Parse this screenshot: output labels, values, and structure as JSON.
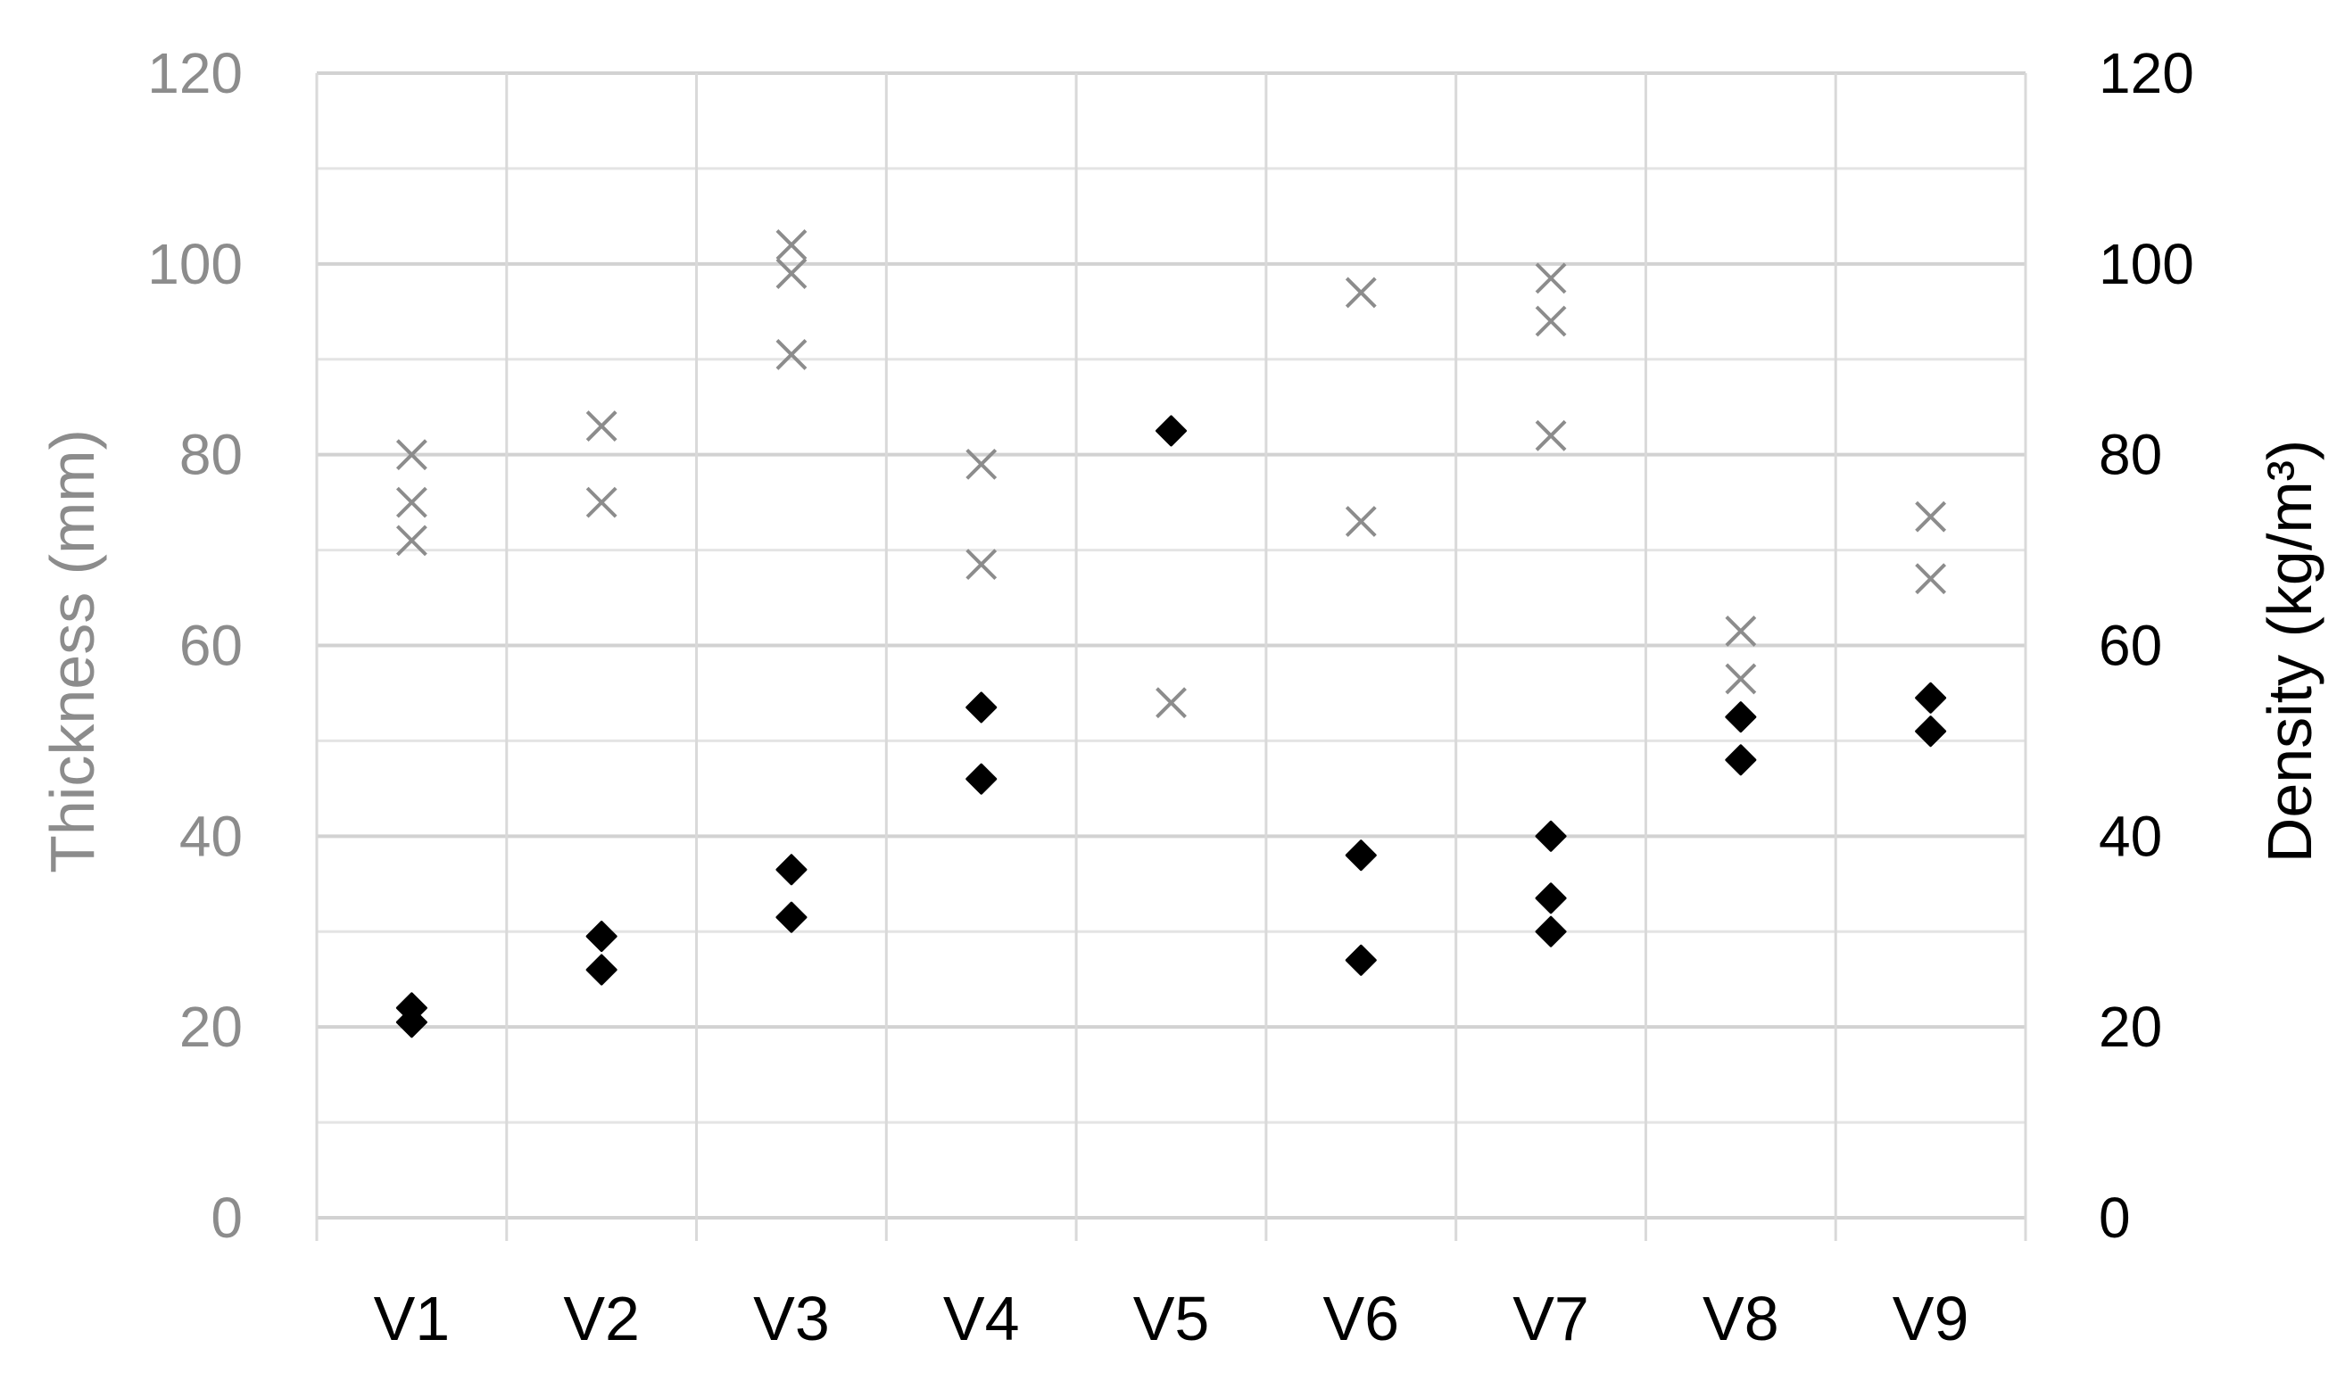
{
  "chart_data": {
    "type": "scatter",
    "categories": [
      "V1",
      "V2",
      "V3",
      "V4",
      "V5",
      "V6",
      "V7",
      "V8",
      "V9"
    ],
    "ylabel": "Thickness (mm)",
    "y2label": "Density (kg/m³)",
    "ylim": [
      0,
      120
    ],
    "y2lim": [
      0,
      120
    ],
    "yticks": [
      "0",
      "20",
      "40",
      "60",
      "80",
      "100",
      "120"
    ],
    "y2ticks": [
      "0",
      "20",
      "40",
      "60",
      "80",
      "100",
      "120"
    ],
    "grid": true,
    "series": [
      {
        "marker": "x",
        "axis": "left",
        "color": "#8c8c8c",
        "points": [
          {
            "category": "V1",
            "values": [
              80,
              75,
              71
            ]
          },
          {
            "category": "V2",
            "values": [
              83,
              75
            ]
          },
          {
            "category": "V3",
            "values": [
              102,
              99,
              90.5
            ]
          },
          {
            "category": "V4",
            "values": [
              79,
              68.5
            ]
          },
          {
            "category": "V5",
            "values": [
              54
            ]
          },
          {
            "category": "V6",
            "values": [
              97,
              73
            ]
          },
          {
            "category": "V7",
            "values": [
              98.5,
              94,
              82
            ]
          },
          {
            "category": "V8",
            "values": [
              61.5,
              56.5
            ]
          },
          {
            "category": "V9",
            "values": [
              73.5,
              67
            ]
          }
        ]
      },
      {
        "marker": "diamond",
        "axis": "right",
        "color": "#000000",
        "points": [
          {
            "category": "V1",
            "values": [
              22,
              20.5
            ]
          },
          {
            "category": "V2",
            "values": [
              29.5,
              26
            ]
          },
          {
            "category": "V3",
            "values": [
              36.5,
              31.5
            ]
          },
          {
            "category": "V4",
            "values": [
              53.5,
              46
            ]
          },
          {
            "category": "V5",
            "values": [
              82.5
            ]
          },
          {
            "category": "V6",
            "values": [
              38,
              27
            ]
          },
          {
            "category": "V7",
            "values": [
              40,
              33.5,
              30
            ]
          },
          {
            "category": "V8",
            "values": [
              52.5,
              48
            ]
          },
          {
            "category": "V9",
            "values": [
              54.5,
              51
            ]
          }
        ]
      }
    ]
  }
}
